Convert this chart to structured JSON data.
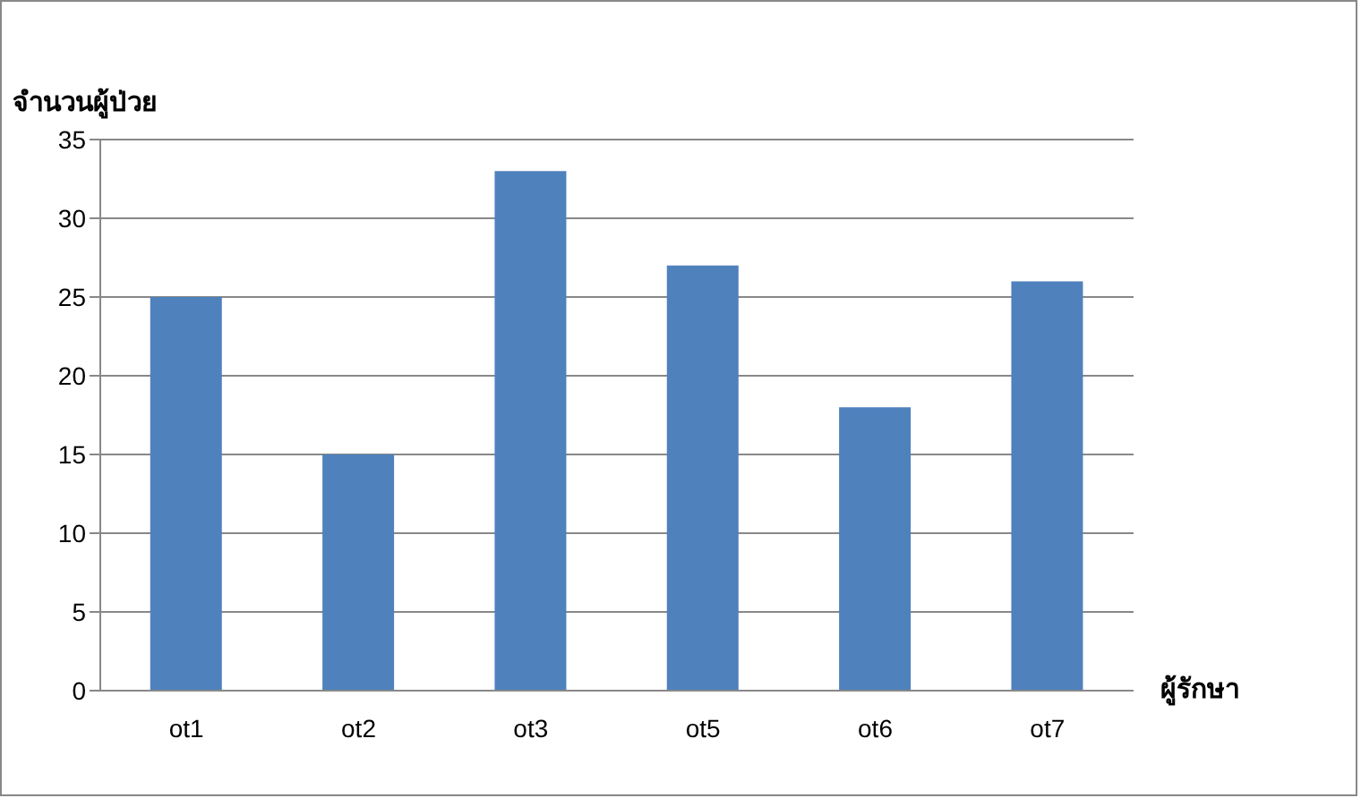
{
  "chart_data": {
    "type": "bar",
    "xlabel": "ผู้รักษา",
    "ylabel": "จำนวนผู้ป่วย",
    "categories": [
      "ot1",
      "ot2",
      "ot3",
      "ot5",
      "ot6",
      "ot7"
    ],
    "values": [
      25,
      15,
      33,
      27,
      18,
      26
    ],
    "color": "#4f81bd",
    "ylim": [
      0,
      35
    ],
    "yticks": [
      0,
      5,
      10,
      15,
      20,
      25,
      30,
      35
    ],
    "grid": "y",
    "legend": false
  }
}
